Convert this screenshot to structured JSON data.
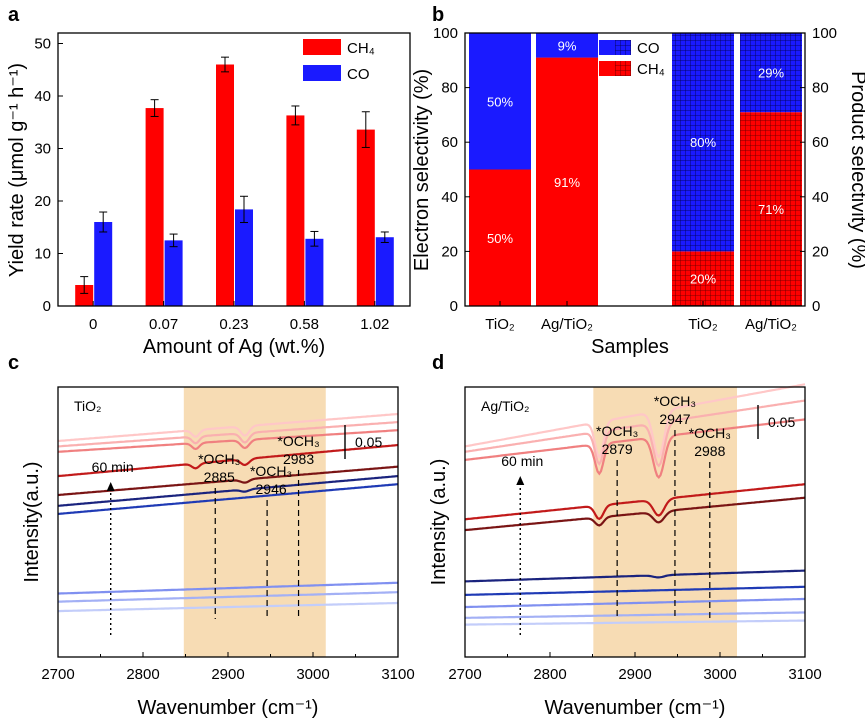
{
  "chart_data": [
    {
      "panel": "a",
      "type": "bar",
      "xlabel": "Amount of Ag (wt.%)",
      "ylabel": "Yield rate  (μmol g⁻¹ h⁻¹)",
      "categories": [
        "0",
        "0.07",
        "0.23",
        "0.58",
        "1.02"
      ],
      "ylim": [
        0,
        52
      ],
      "yticks": [
        0,
        10,
        20,
        30,
        40,
        50
      ],
      "legend_position": "top-right",
      "series": [
        {
          "name": "CH₄",
          "color": "#ff0000",
          "values": [
            4.0,
            37.7,
            46.0,
            36.3,
            33.6
          ],
          "errors": [
            1.6,
            1.6,
            1.4,
            1.8,
            3.4
          ]
        },
        {
          "name": "CO",
          "color": "#1a1aff",
          "values": [
            16.0,
            12.5,
            18.4,
            12.8,
            13.1
          ],
          "errors": [
            1.9,
            1.2,
            2.5,
            1.4,
            1.0
          ]
        }
      ]
    },
    {
      "panel": "b",
      "type": "bar",
      "stacked": true,
      "xlabel": "Samples",
      "ylabel": "Electron selectivity (%)",
      "ylabel_right": "Product selectivity (%)",
      "categories": [
        "TiO₂",
        "Ag/TiO₂",
        "TiO₂",
        "Ag/TiO₂"
      ],
      "ylim": [
        0,
        100
      ],
      "yticks": [
        0,
        20,
        40,
        60,
        80,
        100
      ],
      "legend_position": "top-center",
      "bars": [
        {
          "CH4": 50,
          "CO": 50,
          "CH4_label": "50%",
          "CO_label": "50%",
          "axis": "left",
          "pattern": false
        },
        {
          "CH4": 91,
          "CO": 9,
          "CH4_label": "91%",
          "CO_label": "9%",
          "axis": "left",
          "pattern": false
        },
        {
          "CH4": 20,
          "CO": 80,
          "CH4_label": "20%",
          "CO_label": "80%",
          "axis": "right",
          "pattern": true
        },
        {
          "CH4": 71,
          "CO": 29,
          "CH4_label": "71%",
          "CO_label": "29%",
          "axis": "right",
          "pattern": true
        }
      ],
      "legend": [
        {
          "name": "CO",
          "color": "#1a1aff"
        },
        {
          "name": "CH₄",
          "color": "#ff0000"
        }
      ]
    },
    {
      "panel": "c",
      "type": "line",
      "sample_label": "TiO₂",
      "xlabel": "Wavenumber (cm⁻¹)",
      "ylabel": "Intensity(a.u.)",
      "xlim": [
        2700,
        3100
      ],
      "xticks": [
        2700,
        2800,
        2900,
        3000,
        3100
      ],
      "shaded_region": [
        2848,
        3015
      ],
      "time_label": "60 min",
      "scale_bar": "0.05",
      "peaks": [
        {
          "species": "*OCH₃",
          "wavenumber": "2885",
          "x": 2885
        },
        {
          "species": "*OCH₃",
          "wavenumber": "2946",
          "x": 2946
        },
        {
          "species": "*OCH₃",
          "wavenumber": "2983",
          "x": 2983
        }
      ],
      "spectra": [
        {
          "color": "#ffc7c7",
          "start": 0.8,
          "slope": 0.1,
          "dips": [
            [
              2862,
              0.025,
              6
            ],
            [
              2920,
              0.035,
              7
            ]
          ]
        },
        {
          "color": "#fab0b0",
          "start": 0.78,
          "slope": 0.09,
          "dips": [
            [
              2862,
              0.025,
              6
            ],
            [
              2920,
              0.035,
              7
            ]
          ]
        },
        {
          "color": "#f08080",
          "start": 0.76,
          "slope": 0.08,
          "dips": [
            [
              2862,
              0.022,
              6
            ],
            [
              2920,
              0.03,
              7
            ]
          ]
        },
        {
          "color": "#c21a1a",
          "start": 0.67,
          "slope": 0.115,
          "dips": [
            [
              2862,
              0.018,
              6
            ],
            [
              2920,
              0.022,
              7
            ]
          ]
        },
        {
          "color": "#7a1414",
          "start": 0.6,
          "slope": 0.105,
          "dips": [
            [
              2920,
              0.012,
              7
            ]
          ]
        },
        {
          "color": "#1a237e",
          "start": 0.56,
          "slope": 0.11,
          "dips": [
            [
              2920,
              0.008,
              7
            ]
          ]
        },
        {
          "color": "#1f3ab5",
          "start": 0.53,
          "slope": 0.11,
          "dips": []
        },
        {
          "color": "#8090f0",
          "start": 0.235,
          "slope": 0.04,
          "dips": []
        },
        {
          "color": "#a3b0f5",
          "start": 0.205,
          "slope": 0.035,
          "dips": []
        },
        {
          "color": "#c3cdfa",
          "start": 0.17,
          "slope": 0.03,
          "dips": []
        }
      ]
    },
    {
      "panel": "d",
      "type": "line",
      "sample_label": "Ag/TiO₂",
      "xlabel": "Wavenumber (cm⁻¹)",
      "ylabel": "Intensity (a.u.)",
      "xlim": [
        2700,
        3100
      ],
      "xticks": [
        2700,
        2800,
        2900,
        3000,
        3100
      ],
      "shaded_region": [
        2851,
        3020
      ],
      "time_label": "60 min",
      "scale_bar": "0.05",
      "peaks": [
        {
          "species": "*OCH₃",
          "wavenumber": "2879",
          "x": 2879
        },
        {
          "species": "*OCH₃",
          "wavenumber": "2947",
          "x": 2947
        },
        {
          "species": "*OCH₃",
          "wavenumber": "2988",
          "x": 2988
        }
      ],
      "spectra": [
        {
          "color": "#ffc7c7",
          "start": 0.78,
          "slope": 0.23,
          "dips": [
            [
              2858,
              0.13,
              7
            ],
            [
              2928,
              0.17,
              9
            ]
          ]
        },
        {
          "color": "#fab0b0",
          "start": 0.76,
          "slope": 0.19,
          "dips": [
            [
              2858,
              0.12,
              7
            ],
            [
              2928,
              0.16,
              9
            ]
          ]
        },
        {
          "color": "#f08080",
          "start": 0.73,
          "slope": 0.15,
          "dips": [
            [
              2858,
              0.11,
              7
            ],
            [
              2928,
              0.15,
              9
            ]
          ]
        },
        {
          "color": "#c21a1a",
          "start": 0.51,
          "slope": 0.13,
          "dips": [
            [
              2858,
              0.05,
              7
            ],
            [
              2928,
              0.06,
              9
            ]
          ]
        },
        {
          "color": "#7a1414",
          "start": 0.47,
          "slope": 0.12,
          "dips": [
            [
              2858,
              0.03,
              7
            ],
            [
              2928,
              0.04,
              9
            ]
          ]
        },
        {
          "color": "#1a237e",
          "start": 0.28,
          "slope": 0.04,
          "dips": [
            [
              2928,
              0.008,
              9
            ]
          ]
        },
        {
          "color": "#1f3ab5",
          "start": 0.23,
          "slope": 0.03,
          "dips": []
        },
        {
          "color": "#8090f0",
          "start": 0.185,
          "slope": 0.03,
          "dips": []
        },
        {
          "color": "#a3b0f5",
          "start": 0.145,
          "slope": 0.02,
          "dips": []
        },
        {
          "color": "#c3cdfa",
          "start": 0.12,
          "slope": 0.015,
          "dips": []
        }
      ]
    }
  ]
}
